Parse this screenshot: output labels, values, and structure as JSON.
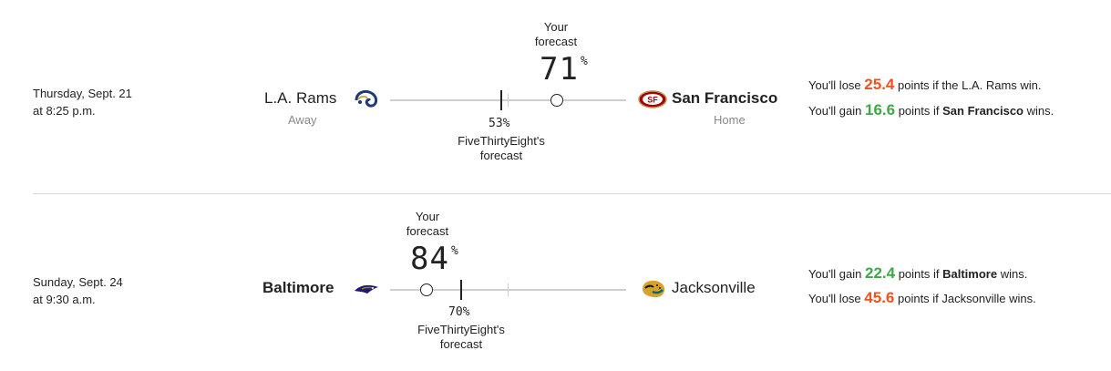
{
  "games": [
    {
      "date": "Thursday, Sept. 21",
      "time": "at 8:25 p.m.",
      "away_team": "L.A. Rams",
      "away_label": "Away",
      "home_team": "San Francisco",
      "home_label": "Home",
      "your_label_1": "Your",
      "your_label_2": "forecast",
      "your_forecast": "71",
      "fte_forecast": "53",
      "fte_label_1": "FiveThirtyEight's",
      "fte_label_2": "forecast",
      "pct_symbol": "%",
      "line1": {
        "pre": "You'll lose ",
        "value": "25.4",
        "mid": " points if the L.A. Rams win.",
        "team_bold": "",
        "post": ""
      },
      "line2": {
        "pre": "You'll gain ",
        "value": "16.6",
        "mid": " points if ",
        "team_bold": "San Francisco",
        "post": " wins."
      },
      "away_logo": "rams-logo-icon",
      "home_logo": "49ers-logo-icon"
    },
    {
      "date": "Sunday, Sept. 24",
      "time": "at 9:30 a.m.",
      "away_team": "Baltimore",
      "home_team": "Jacksonville",
      "your_label_1": "Your",
      "your_label_2": "forecast",
      "your_forecast": "84",
      "fte_forecast": "70",
      "fte_label_1": "FiveThirtyEight's",
      "fte_label_2": "forecast",
      "pct_symbol": "%",
      "line1": {
        "pre": "You'll gain ",
        "value": "22.4",
        "mid": " points if ",
        "team_bold": "Baltimore",
        "post": " wins."
      },
      "line2": {
        "pre": "You'll lose ",
        "value": "45.6",
        "mid": " points if Jacksonville wins.",
        "team_bold": "",
        "post": ""
      },
      "away_logo": "ravens-logo-icon",
      "home_logo": "jaguars-logo-icon"
    }
  ],
  "colors": {
    "lose": "#f0521d",
    "gain": "#3ca946",
    "track": "#cfcfcf"
  }
}
